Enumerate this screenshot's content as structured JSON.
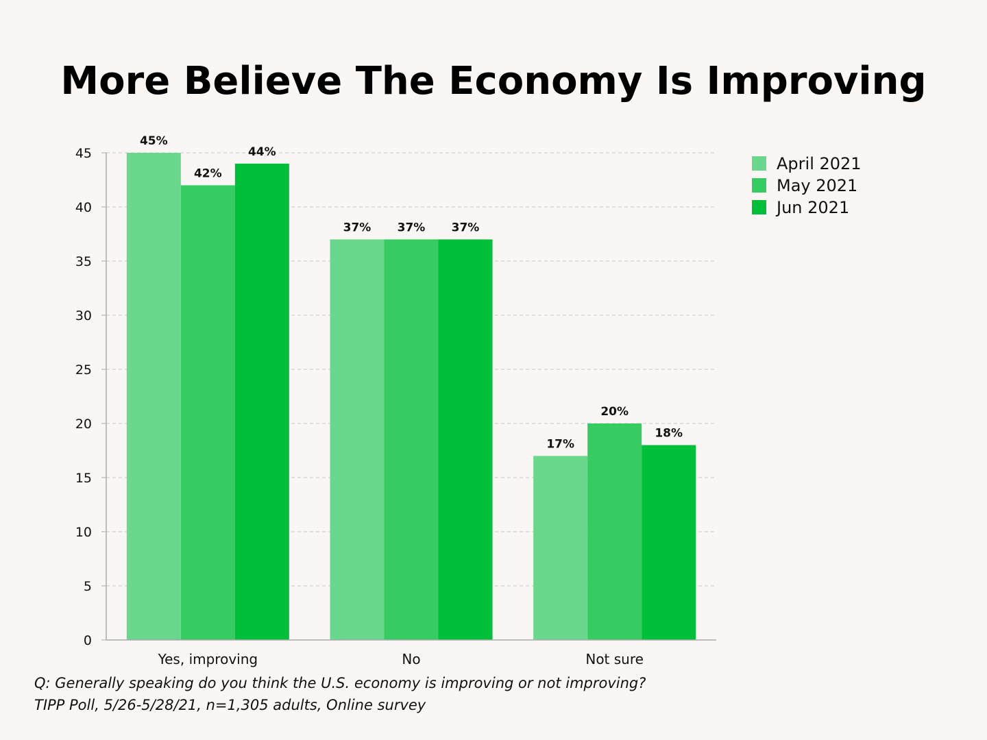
{
  "chart_data": {
    "type": "bar",
    "title": "More Believe The Economy Is Improving",
    "categories": [
      "Yes, improving",
      "No",
      "Not sure"
    ],
    "series": [
      {
        "name": "April 2021",
        "color": "#6ad88c",
        "values": [
          45,
          37,
          17
        ],
        "labels": [
          "45%",
          "37%",
          "17%"
        ]
      },
      {
        "name": "May 2021",
        "color": "#36cc62",
        "values": [
          42,
          37,
          20
        ],
        "labels": [
          "42%",
          "37%",
          "20%"
        ]
      },
      {
        "name": "Jun 2021",
        "color": "#00c03a",
        "values": [
          44,
          37,
          18
        ],
        "labels": [
          "44%",
          "37%",
          "18%"
        ]
      }
    ],
    "ylim": [
      0,
      45
    ],
    "yticks": [
      0,
      5,
      10,
      15,
      20,
      25,
      30,
      35,
      40,
      45
    ],
    "xlabel": "",
    "ylabel": "",
    "grid": true,
    "legend_position": "top-right",
    "footnotes": [
      "Q:  Generally speaking do you think the U.S. economy is improving or not improving?",
      "TIPP Poll, 5/26-5/28/21, n=1,305 adults, Online survey"
    ]
  }
}
